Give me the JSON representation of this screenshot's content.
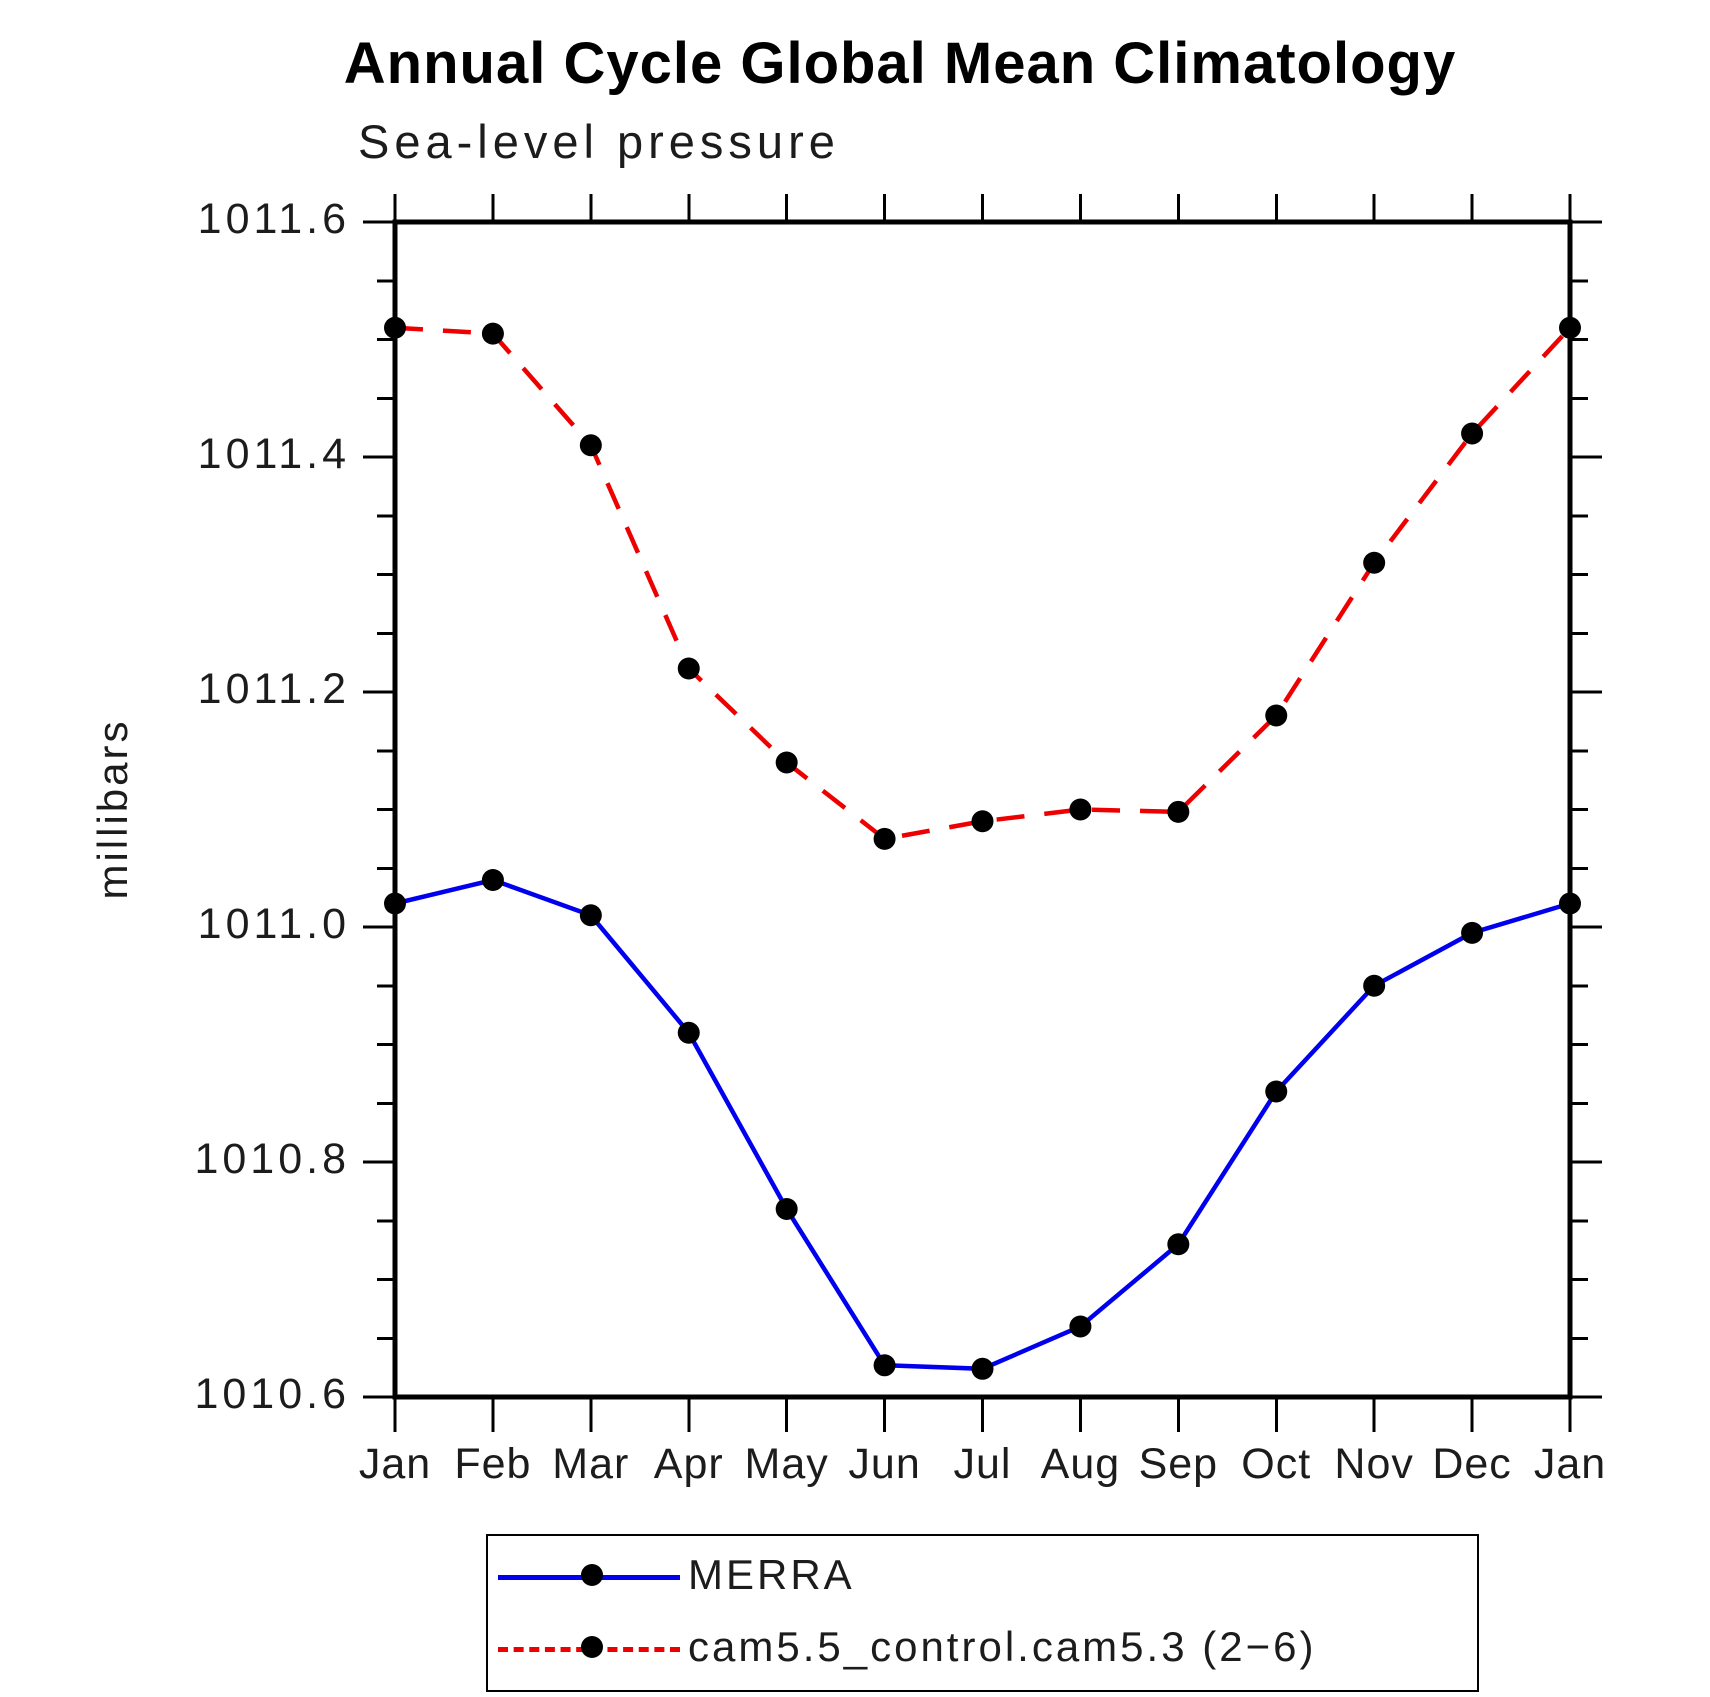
{
  "title": "Annual Cycle Global Mean Climatology",
  "subtitle": "Sea-level pressure",
  "ylabel": "millibars",
  "colors": {
    "merra_line": "#0000ee",
    "cam_line": "#ee0000",
    "marker": "#000000",
    "axis": "#000000",
    "background": "#ffffff"
  },
  "legend": {
    "items": [
      {
        "label": "MERRA",
        "style": "solid",
        "color": "#0000ee"
      },
      {
        "label": "cam5.5_control.cam5.3 (2−6)",
        "style": "dashed",
        "color": "#ee0000"
      }
    ]
  },
  "chart_data": {
    "type": "line",
    "categories": [
      "Jan",
      "Feb",
      "Mar",
      "Apr",
      "May",
      "Jun",
      "Jul",
      "Aug",
      "Sep",
      "Oct",
      "Nov",
      "Dec",
      "Jan"
    ],
    "series": [
      {
        "name": "MERRA",
        "color": "#0000ee",
        "dash": "solid",
        "marker": "filled-circle",
        "values": [
          1011.02,
          1011.04,
          1011.01,
          1010.91,
          1010.76,
          1010.627,
          1010.624,
          1010.66,
          1010.73,
          1010.86,
          1010.95,
          1010.995,
          1011.02
        ]
      },
      {
        "name": "cam5.5_control.cam5.3 (2−6)",
        "color": "#ee0000",
        "dash": "dashed",
        "marker": "filled-circle",
        "values": [
          1011.51,
          1011.505,
          1011.41,
          1011.22,
          1011.14,
          1011.075,
          1011.09,
          1011.1,
          1011.098,
          1011.18,
          1011.31,
          1011.42,
          1011.51
        ]
      }
    ],
    "xlabel": "",
    "ylabel": "millibars",
    "ylim": [
      1010.6,
      1011.6
    ],
    "ytick_major": 0.2,
    "ytick_minor": 0.05,
    "grid": false,
    "legend_position": "bottom",
    "axis_style": "box-with-outward-ticks"
  }
}
